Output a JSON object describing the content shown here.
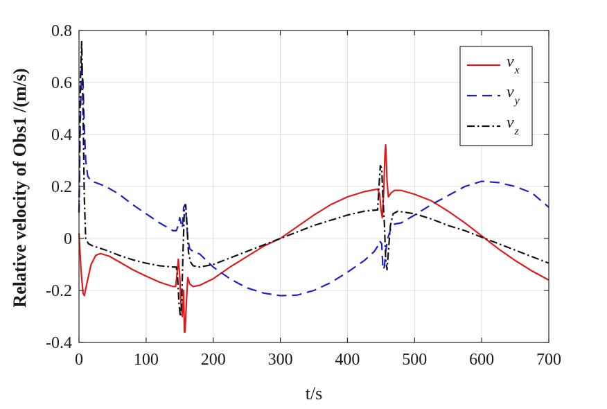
{
  "chart_data": {
    "type": "line",
    "title": "",
    "xlabel": "t/s",
    "ylabel": "Relative velocity of Obs1 /(m/s)",
    "xlim": [
      0,
      700
    ],
    "ylim": [
      -0.4,
      0.8
    ],
    "grid": true,
    "legend_position": "top-right",
    "x_ticks": [
      0,
      100,
      200,
      300,
      400,
      500,
      600,
      700
    ],
    "x_tick_labels": [
      "0",
      "100",
      "200",
      "300",
      "400",
      "500",
      "600",
      "700"
    ],
    "y_ticks": [
      -0.4,
      -0.2,
      0,
      0.2,
      0.4,
      0.6,
      0.8
    ],
    "y_tick_labels": [
      "-0.4",
      "-0.2",
      "0",
      "0.2",
      "0.4",
      "0.6",
      "0.8"
    ],
    "series": [
      {
        "name": "v",
        "subscript": "x",
        "color": "#e0191c",
        "dash": "solid",
        "points": [
          [
            0,
            0.02
          ],
          [
            3,
            -0.12
          ],
          [
            6,
            -0.21
          ],
          [
            8,
            -0.22
          ],
          [
            12,
            -0.17
          ],
          [
            18,
            -0.1
          ],
          [
            25,
            -0.065
          ],
          [
            32,
            -0.058
          ],
          [
            45,
            -0.068
          ],
          [
            60,
            -0.09
          ],
          [
            80,
            -0.12
          ],
          [
            100,
            -0.145
          ],
          [
            120,
            -0.168
          ],
          [
            140,
            -0.185
          ],
          [
            144,
            -0.185
          ],
          [
            146,
            -0.14
          ],
          [
            148,
            -0.08
          ],
          [
            150,
            -0.14
          ],
          [
            152,
            -0.25
          ],
          [
            154,
            -0.3
          ],
          [
            156,
            -0.2
          ],
          [
            157,
            -0.36
          ],
          [
            158,
            -0.36
          ],
          [
            160,
            -0.25
          ],
          [
            162,
            -0.15
          ],
          [
            165,
            -0.175
          ],
          [
            170,
            -0.185
          ],
          [
            180,
            -0.18
          ],
          [
            200,
            -0.155
          ],
          [
            225,
            -0.11
          ],
          [
            250,
            -0.07
          ],
          [
            275,
            -0.03
          ],
          [
            300,
            0.0
          ],
          [
            325,
            0.045
          ],
          [
            350,
            0.09
          ],
          [
            375,
            0.13
          ],
          [
            400,
            0.16
          ],
          [
            425,
            0.18
          ],
          [
            445,
            0.19
          ],
          [
            448,
            0.17
          ],
          [
            450,
            0.11
          ],
          [
            452,
            0.08
          ],
          [
            454,
            0.18
          ],
          [
            456,
            0.33
          ],
          [
            457,
            0.36
          ],
          [
            459,
            0.22
          ],
          [
            461,
            0.16
          ],
          [
            465,
            0.175
          ],
          [
            470,
            0.185
          ],
          [
            480,
            0.185
          ],
          [
            500,
            0.17
          ],
          [
            525,
            0.145
          ],
          [
            550,
            0.105
          ],
          [
            575,
            0.06
          ],
          [
            600,
            0.01
          ],
          [
            625,
            -0.04
          ],
          [
            650,
            -0.085
          ],
          [
            675,
            -0.125
          ],
          [
            700,
            -0.16
          ]
        ]
      },
      {
        "name": "v",
        "subscript": "y",
        "color": "#1f1fc8",
        "dash": "dashed",
        "points": [
          [
            0,
            0.1
          ],
          [
            2,
            0.45
          ],
          [
            4,
            0.68
          ],
          [
            6,
            0.6
          ],
          [
            8,
            0.42
          ],
          [
            10,
            0.3
          ],
          [
            13,
            0.24
          ],
          [
            18,
            0.22
          ],
          [
            25,
            0.215
          ],
          [
            40,
            0.2
          ],
          [
            60,
            0.17
          ],
          [
            80,
            0.13
          ],
          [
            100,
            0.095
          ],
          [
            120,
            0.06
          ],
          [
            140,
            0.03
          ],
          [
            145,
            0.03
          ],
          [
            148,
            0.05
          ],
          [
            150,
            0.08
          ],
          [
            152,
            0.06
          ],
          [
            154,
            0.04
          ],
          [
            156,
            0.12
          ],
          [
            158,
            0.13
          ],
          [
            160,
            0.08
          ],
          [
            162,
            0.0
          ],
          [
            165,
            -0.04
          ],
          [
            170,
            -0.05
          ],
          [
            180,
            -0.06
          ],
          [
            200,
            -0.11
          ],
          [
            225,
            -0.155
          ],
          [
            250,
            -0.19
          ],
          [
            275,
            -0.21
          ],
          [
            300,
            -0.22
          ],
          [
            325,
            -0.218
          ],
          [
            350,
            -0.2
          ],
          [
            375,
            -0.17
          ],
          [
            400,
            -0.13
          ],
          [
            425,
            -0.085
          ],
          [
            440,
            -0.05
          ],
          [
            445,
            -0.03
          ],
          [
            448,
            -0.01
          ],
          [
            451,
            -0.02
          ],
          [
            453,
            -0.12
          ],
          [
            455,
            -0.11
          ],
          [
            457,
            -0.05
          ],
          [
            460,
            0.0
          ],
          [
            465,
            0.04
          ],
          [
            470,
            0.055
          ],
          [
            480,
            0.06
          ],
          [
            500,
            0.09
          ],
          [
            525,
            0.13
          ],
          [
            550,
            0.165
          ],
          [
            575,
            0.2
          ],
          [
            600,
            0.22
          ],
          [
            625,
            0.215
          ],
          [
            650,
            0.2
          ],
          [
            675,
            0.175
          ],
          [
            700,
            0.12
          ]
        ]
      },
      {
        "name": "v",
        "subscript": "z",
        "color": "#111111",
        "dash": "dashdot",
        "points": [
          [
            0,
            0.1
          ],
          [
            2,
            0.6
          ],
          [
            4,
            0.76
          ],
          [
            6,
            0.5
          ],
          [
            8,
            0.15
          ],
          [
            10,
            0.0
          ],
          [
            14,
            -0.02
          ],
          [
            20,
            -0.028
          ],
          [
            40,
            -0.045
          ],
          [
            60,
            -0.065
          ],
          [
            80,
            -0.082
          ],
          [
            100,
            -0.095
          ],
          [
            120,
            -0.105
          ],
          [
            140,
            -0.11
          ],
          [
            145,
            -0.11
          ],
          [
            147,
            -0.15
          ],
          [
            149,
            -0.25
          ],
          [
            151,
            -0.3
          ],
          [
            153,
            -0.25
          ],
          [
            155,
            -0.05
          ],
          [
            157,
            0.11
          ],
          [
            159,
            0.13
          ],
          [
            161,
            0.05
          ],
          [
            163,
            -0.05
          ],
          [
            166,
            -0.09
          ],
          [
            170,
            -0.105
          ],
          [
            180,
            -0.11
          ],
          [
            200,
            -0.1
          ],
          [
            225,
            -0.075
          ],
          [
            250,
            -0.05
          ],
          [
            275,
            -0.025
          ],
          [
            300,
            0.0
          ],
          [
            325,
            0.025
          ],
          [
            350,
            0.05
          ],
          [
            375,
            0.07
          ],
          [
            400,
            0.09
          ],
          [
            425,
            0.105
          ],
          [
            445,
            0.11
          ],
          [
            447,
            0.2
          ],
          [
            449,
            0.28
          ],
          [
            451,
            0.27
          ],
          [
            453,
            0.15
          ],
          [
            455,
            0.06
          ],
          [
            457,
            -0.08
          ],
          [
            459,
            -0.12
          ],
          [
            461,
            -0.05
          ],
          [
            464,
            0.05
          ],
          [
            468,
            0.095
          ],
          [
            475,
            0.105
          ],
          [
            500,
            0.095
          ],
          [
            525,
            0.075
          ],
          [
            550,
            0.05
          ],
          [
            575,
            0.03
          ],
          [
            600,
            0.005
          ],
          [
            625,
            -0.02
          ],
          [
            650,
            -0.045
          ],
          [
            675,
            -0.07
          ],
          [
            700,
            -0.095
          ]
        ]
      }
    ]
  }
}
